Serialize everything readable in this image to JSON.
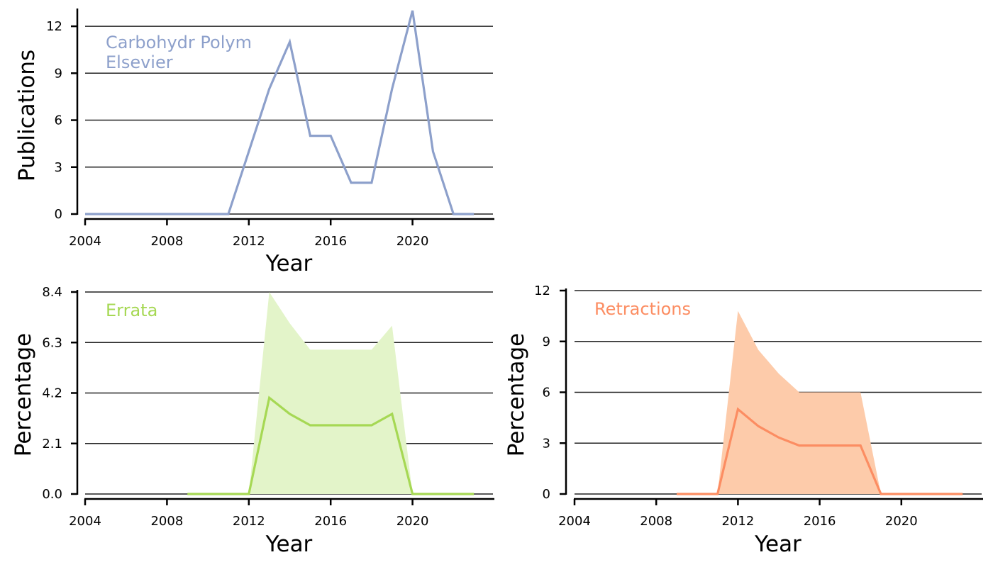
{
  "chart_data": [
    {
      "id": "publications",
      "type": "line",
      "annotation": [
        "Carbohydr Polym",
        "Elsevier"
      ],
      "xlabel": "Year",
      "ylabel": "Publications",
      "xticks": [
        2004,
        2008,
        2012,
        2016,
        2020
      ],
      "yticks": [
        "0",
        "3",
        "6",
        "9",
        "12"
      ],
      "xlim": [
        2004,
        2024
      ],
      "ylim": [
        0,
        13
      ],
      "grid": "horizontal",
      "color": "#8da0cb",
      "series": [
        {
          "x": [
            2004,
            2005,
            2006,
            2007,
            2008,
            2009,
            2010,
            2011,
            2012,
            2013,
            2014,
            2015,
            2016,
            2017,
            2018,
            2019,
            2020,
            2021,
            2022,
            2023
          ],
          "values": [
            0,
            0,
            0,
            0,
            0,
            0,
            0,
            0,
            4,
            8,
            11,
            5,
            5,
            2,
            2,
            8,
            13,
            4,
            0,
            0
          ]
        }
      ]
    },
    {
      "id": "errata",
      "type": "area",
      "annotation": [
        "Errata"
      ],
      "xlabel": "Year",
      "ylabel": "Percentage",
      "xticks": [
        2004,
        2008,
        2012,
        2016,
        2020
      ],
      "yticks": [
        "0.0",
        "2.1",
        "4.2",
        "6.3",
        "8.4"
      ],
      "xlim": [
        2004,
        2024
      ],
      "ylim": [
        0,
        8.4
      ],
      "grid": "horizontal",
      "color": "#a6d854",
      "band_color": "#e3f4c9",
      "series": [
        {
          "x": [
            2009,
            2010,
            2011,
            2012,
            2013,
            2014,
            2015,
            2016,
            2017,
            2018,
            2019,
            2020,
            2021,
            2022,
            2023
          ],
          "values": [
            0,
            0,
            0,
            0,
            4.0,
            3.33,
            2.86,
            2.86,
            2.86,
            2.86,
            3.33,
            0,
            0,
            0,
            0
          ],
          "upper": [
            0,
            0,
            0,
            0,
            8.4,
            7.1,
            6.0,
            6.0,
            6.0,
            6.0,
            7.0,
            0,
            0,
            0,
            0
          ]
        }
      ]
    },
    {
      "id": "retractions",
      "type": "area",
      "annotation": [
        "Retractions"
      ],
      "xlabel": "Year",
      "ylabel": "Percentage",
      "xticks": [
        2004,
        2008,
        2012,
        2016,
        2020
      ],
      "yticks": [
        "0",
        "3",
        "6",
        "9",
        "12"
      ],
      "xlim": [
        2004,
        2024
      ],
      "ylim": [
        0,
        12
      ],
      "grid": "horizontal",
      "color": "#fc8d62",
      "band_color": "#fdcbaa",
      "series": [
        {
          "x": [
            2009,
            2010,
            2011,
            2012,
            2013,
            2014,
            2015,
            2016,
            2017,
            2018,
            2019,
            2020,
            2021,
            2022,
            2023
          ],
          "values": [
            0,
            0,
            0,
            5.0,
            4.0,
            3.33,
            2.86,
            2.86,
            2.86,
            2.86,
            0,
            0,
            0,
            0,
            0
          ],
          "upper": [
            0,
            0,
            0,
            10.8,
            8.5,
            7.1,
            6.0,
            6.0,
            6.0,
            6.0,
            0,
            0,
            0,
            0,
            0
          ]
        }
      ]
    }
  ]
}
